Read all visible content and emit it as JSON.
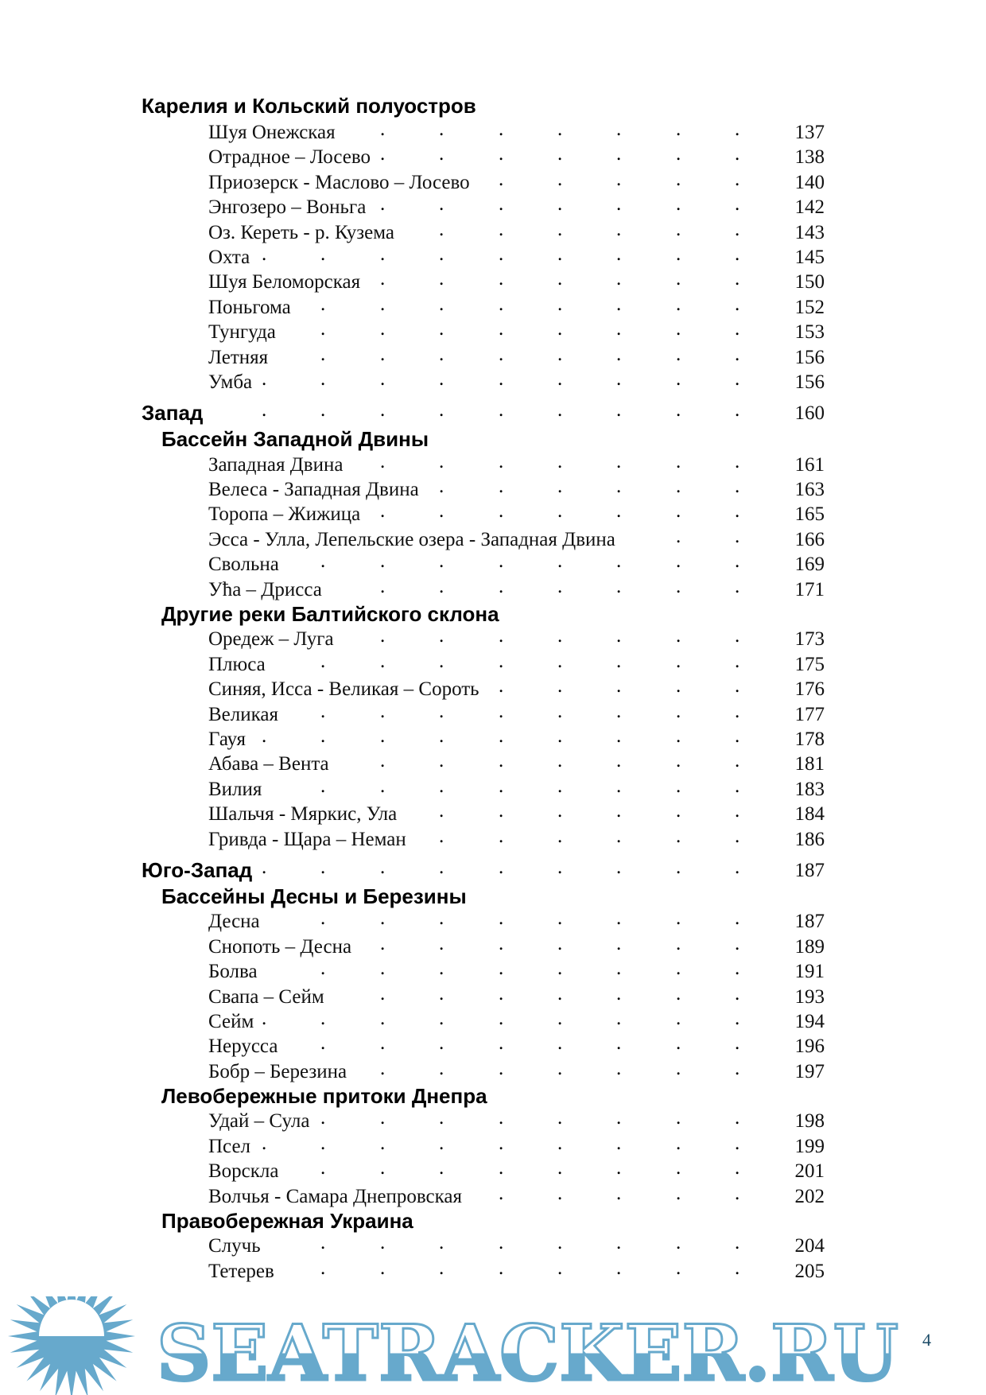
{
  "sections": [
    {
      "title": "Карелия и Кольский полуостров",
      "level": 1,
      "page": null,
      "entries": [
        {
          "label": "Шуя Онежская",
          "page": "137"
        },
        {
          "label": "Отрадное – Лосево",
          "page": "138"
        },
        {
          "label": "Приозерск - Маслово – Лосево",
          "page": "140"
        },
        {
          "label": "Энгозеро – Воньга",
          "page": "142"
        },
        {
          "label": "Оз. Кереть - р. Кузема",
          "page": "143"
        },
        {
          "label": "Охта",
          "page": "145"
        },
        {
          "label": "Шуя Беломорская",
          "page": "150"
        },
        {
          "label": "Поньгома",
          "page": "152"
        },
        {
          "label": "Тунгуда",
          "page": "153"
        },
        {
          "label": "Летняя",
          "page": "156"
        },
        {
          "label": "Умба",
          "page": "156"
        }
      ]
    },
    {
      "title": "Запад",
      "level": 1,
      "page": "160",
      "entries": []
    },
    {
      "title": "Бассейн Западной Двины",
      "level": 2,
      "page": null,
      "entries": [
        {
          "label": "Западная Двина",
          "page": "161"
        },
        {
          "label": "Велеса - Западная Двина",
          "page": "163"
        },
        {
          "label": "Торопа – Жижица",
          "page": "165"
        },
        {
          "label": "Эсса - Улла, Лепельские озера - Западная Двина",
          "page": "166"
        },
        {
          "label": "Свольна",
          "page": "169"
        },
        {
          "label": "Ућа – Дрисса",
          "page": "171"
        }
      ]
    },
    {
      "title": "Другие реки Балтийского склона",
      "level": 2,
      "page": null,
      "entries": [
        {
          "label": "Оредеж – Луга",
          "page": "173"
        },
        {
          "label": "Плюса",
          "page": "175"
        },
        {
          "label": "Синяя, Исса - Великая – Сороть",
          "page": "176"
        },
        {
          "label": "Великая",
          "page": "177"
        },
        {
          "label": "Гауя",
          "page": "178"
        },
        {
          "label": "Абава – Вента",
          "page": "181"
        },
        {
          "label": "Вилия",
          "page": "183"
        },
        {
          "label": "Шальчя - Мяркис, Ула",
          "page": "184"
        },
        {
          "label": "Гривда - Щара – Неман",
          "page": "186"
        }
      ]
    },
    {
      "title": "Юго-Запад",
      "level": 1,
      "page": "187",
      "entries": []
    },
    {
      "title": "Бассейны Десны и Березины",
      "level": 2,
      "page": null,
      "entries": [
        {
          "label": "Десна",
          "page": "187"
        },
        {
          "label": "Снопоть – Десна",
          "page": "189"
        },
        {
          "label": "Болва",
          "page": "191"
        },
        {
          "label": "Свапа – Сейм",
          "page": "193"
        },
        {
          "label": "Сейм",
          "page": "194"
        },
        {
          "label": "Нерусса",
          "page": "196"
        },
        {
          "label": "Бобр – Березина",
          "page": "197"
        }
      ]
    },
    {
      "title": "Левобережные притоки Днепра",
      "level": 2,
      "page": null,
      "entries": [
        {
          "label": "Удай – Сула",
          "page": "198"
        },
        {
          "label": "Псел",
          "page": "199"
        },
        {
          "label": "Ворскла",
          "page": "201"
        },
        {
          "label": "Волчья - Самара Днепровская",
          "page": "202"
        }
      ]
    },
    {
      "title": "Правобережная Украина",
      "level": 2,
      "page": null,
      "entries": [
        {
          "label": "Случь",
          "page": "204"
        },
        {
          "label": "Тетерев",
          "page": "205"
        }
      ]
    }
  ],
  "page_number": "4",
  "watermark": {
    "text": "SEATRACKER.RU",
    "color": "#67a9cc"
  }
}
